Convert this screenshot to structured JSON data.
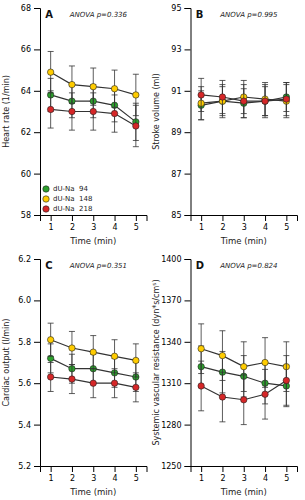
{
  "chart_data": [
    {
      "type": "line",
      "title": "A",
      "annotation": "ANOVA p=0.336",
      "x_label": "Time (min)",
      "y_label": "Heart rate (1/min)",
      "x": [
        1,
        2,
        3,
        4,
        5
      ],
      "xlim": [
        0.5,
        5.5
      ],
      "xticks": [
        1,
        2,
        3,
        4,
        5
      ],
      "ylim": [
        58,
        68
      ],
      "yticks": [
        58,
        60,
        62,
        64,
        66,
        68
      ],
      "grid": false,
      "marker": "circle",
      "line_style": "solid",
      "legend": "lower left",
      "series": [
        {
          "name": "dU-Na  94",
          "color": "#2ca02c",
          "values": [
            63.8,
            63.5,
            63.5,
            63.3,
            62.5
          ],
          "errors": [
            0.8,
            0.8,
            0.8,
            0.8,
            0.9
          ]
        },
        {
          "name": "dU-Na  148",
          "color": "#ffcc00",
          "values": [
            64.9,
            64.3,
            64.2,
            64.1,
            63.8
          ],
          "errors": [
            1.0,
            0.9,
            0.9,
            0.9,
            1.0
          ]
        },
        {
          "name": "dU-Na  218",
          "color": "#d62728",
          "values": [
            63.1,
            63.0,
            63.0,
            62.9,
            62.3
          ],
          "errors": [
            0.9,
            0.9,
            0.9,
            0.9,
            1.0
          ]
        }
      ]
    },
    {
      "type": "line",
      "title": "B",
      "annotation": "ANOVA p=0.995",
      "x_label": "Time (min)",
      "y_label": "Stroke volume (ml)",
      "x": [
        1,
        2,
        3,
        4,
        5
      ],
      "xlim": [
        0.5,
        5.5
      ],
      "xticks": [
        1,
        2,
        3,
        4,
        5
      ],
      "ylim": [
        85,
        95
      ],
      "yticks": [
        85,
        87,
        89,
        91,
        93,
        95
      ],
      "grid": false,
      "marker": "circle",
      "line_style": "solid",
      "series": [
        {
          "color": "#2ca02c",
          "values": [
            90.3,
            90.5,
            90.4,
            90.5,
            90.7
          ],
          "errors": [
            0.7,
            0.7,
            0.7,
            0.7,
            0.7
          ]
        },
        {
          "color": "#ffcc00",
          "values": [
            90.4,
            90.5,
            90.7,
            90.6,
            90.5
          ],
          "errors": [
            0.8,
            0.8,
            0.8,
            0.8,
            0.8
          ]
        },
        {
          "color": "#d62728",
          "values": [
            90.8,
            90.7,
            90.5,
            90.5,
            90.6
          ],
          "errors": [
            0.8,
            0.8,
            0.8,
            0.8,
            0.8
          ]
        }
      ]
    },
    {
      "type": "line",
      "title": "C",
      "annotation": "ANOVA p=0.351",
      "x_label": "Time (min)",
      "y_label": "Cardiac output (l/min)",
      "x": [
        1,
        2,
        3,
        4,
        5
      ],
      "xlim": [
        0.5,
        5.5
      ],
      "xticks": [
        1,
        2,
        3,
        4,
        5
      ],
      "ylim": [
        5.2,
        6.2
      ],
      "yticks": [
        5.2,
        5.4,
        5.6,
        5.8,
        {
          "value": 6.0,
          "label": "6.0"
        },
        6.2
      ],
      "grid": false,
      "marker": "circle",
      "line_style": "solid",
      "series": [
        {
          "color": "#2ca02c",
          "values": [
            5.72,
            5.67,
            5.67,
            5.65,
            5.63
          ],
          "errors": [
            0.07,
            0.07,
            0.07,
            0.07,
            0.07
          ]
        },
        {
          "color": "#ffcc00",
          "values": [
            5.81,
            5.77,
            5.75,
            5.73,
            5.71
          ],
          "errors": [
            0.08,
            0.08,
            0.08,
            0.08,
            0.08
          ]
        },
        {
          "color": "#d62728",
          "values": [
            5.63,
            5.62,
            5.6,
            5.6,
            5.58
          ],
          "errors": [
            0.07,
            0.07,
            0.07,
            0.07,
            0.07
          ]
        }
      ]
    },
    {
      "type": "line",
      "title": "D",
      "annotation": "ANOVA p=0.824",
      "x_label": "Time (min)",
      "y_label": "Systemic vascular resistance (dyn*s/cm⁵)",
      "x": [
        1,
        2,
        3,
        4,
        5
      ],
      "xlim": [
        0.5,
        5.5
      ],
      "xticks": [
        1,
        2,
        3,
        4,
        5
      ],
      "ylim": [
        1250,
        1400
      ],
      "yticks": [
        1250,
        1280,
        1310,
        1340,
        1370,
        1400
      ],
      "grid": false,
      "marker": "circle",
      "line_style": "solid",
      "series": [
        {
          "color": "#2ca02c",
          "values": [
            1322,
            1318,
            1315,
            1310,
            1308
          ],
          "errors": [
            15,
            15,
            15,
            15,
            15
          ]
        },
        {
          "color": "#ffcc00",
          "values": [
            1335,
            1330,
            1322,
            1325,
            1322
          ],
          "errors": [
            18,
            18,
            18,
            18,
            18
          ]
        },
        {
          "color": "#d62728",
          "values": [
            1308,
            1300,
            1298,
            1302,
            1312
          ],
          "errors": [
            18,
            18,
            18,
            18,
            18
          ]
        }
      ]
    }
  ]
}
